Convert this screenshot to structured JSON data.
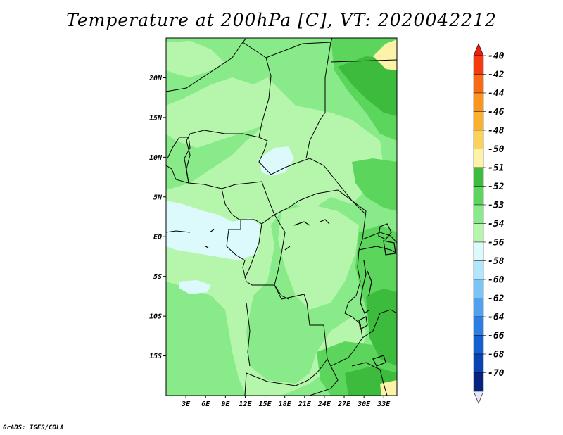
{
  "title": "Temperature at 200hPa [C], VT: 2020042212",
  "credit": "GrADS: IGES/COLA",
  "map": {
    "variable": "Temperature",
    "level": "200hPa",
    "units": "C",
    "valid_time": "2020042212",
    "lon_range": [
      0,
      35
    ],
    "lat_range": [
      -20,
      25
    ],
    "lat_ticks": [
      {
        "value": 20,
        "label": "20N"
      },
      {
        "value": 15,
        "label": "15N"
      },
      {
        "value": 10,
        "label": "10N"
      },
      {
        "value": 5,
        "label": "5N"
      },
      {
        "value": 0,
        "label": "EQ"
      },
      {
        "value": -5,
        "label": "5S"
      },
      {
        "value": -10,
        "label": "10S"
      },
      {
        "value": -15,
        "label": "15S"
      }
    ],
    "lon_ticks": [
      {
        "value": 3,
        "label": "3E"
      },
      {
        "value": 6,
        "label": "6E"
      },
      {
        "value": 9,
        "label": "9E"
      },
      {
        "value": 12,
        "label": "12E"
      },
      {
        "value": 15,
        "label": "15E"
      },
      {
        "value": 18,
        "label": "18E"
      },
      {
        "value": 21,
        "label": "21E"
      },
      {
        "value": 24,
        "label": "24E"
      },
      {
        "value": 27,
        "label": "27E"
      },
      {
        "value": 30,
        "label": "30E"
      },
      {
        "value": 33,
        "label": "33E"
      }
    ]
  },
  "colorbar": {
    "top_arrow_color": "#e8200c",
    "bottom_arrow_color": "#e6e6fa",
    "levels": [
      {
        "label": "-40",
        "color": "#f43a0e"
      },
      {
        "label": "-42",
        "color": "#f86a14"
      },
      {
        "label": "-44",
        "color": "#fa961c"
      },
      {
        "label": "-46",
        "color": "#fbb130"
      },
      {
        "label": "-48",
        "color": "#fcd25c"
      },
      {
        "label": "-50",
        "color": "#fcf2a8"
      },
      {
        "label": "-51",
        "color": "#3cbb3c"
      },
      {
        "label": "-52",
        "color": "#5cd55c"
      },
      {
        "label": "-53",
        "color": "#88ea88"
      },
      {
        "label": "-54",
        "color": "#b6f6ac"
      },
      {
        "label": "-56",
        "color": "#dcfafc"
      },
      {
        "label": "-58",
        "color": "#b2e6fa"
      },
      {
        "label": "-60",
        "color": "#7cc4f6"
      },
      {
        "label": "-62",
        "color": "#50a2ee"
      },
      {
        "label": "-64",
        "color": "#2c7de4"
      },
      {
        "label": "-66",
        "color": "#1460d0"
      },
      {
        "label": "-68",
        "color": "#0a44b4"
      },
      {
        "label": "-70",
        "color": "#06247e"
      }
    ]
  }
}
